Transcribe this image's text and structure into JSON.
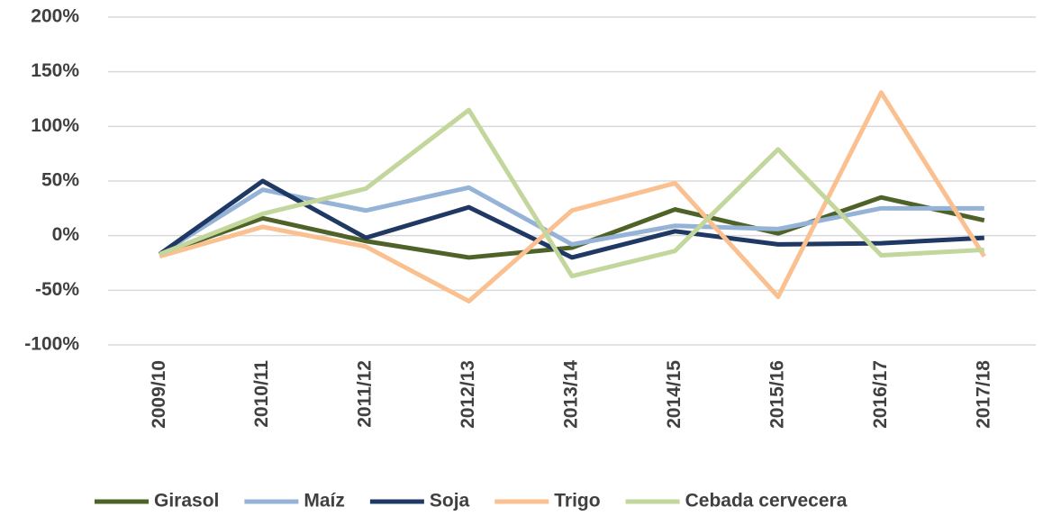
{
  "chart_data": {
    "type": "line",
    "categories": [
      "2009/10",
      "2010/11",
      "2011/12",
      "2012/13",
      "2013/14",
      "2014/15",
      "2015/16",
      "2016/17",
      "2017/18"
    ],
    "series": [
      {
        "name": "Girasol",
        "color": "#4f6228",
        "values": [
          -17,
          16,
          -5,
          -20,
          -11,
          24,
          2,
          35,
          14
        ]
      },
      {
        "name": "Maíz",
        "color": "#95b3d7",
        "values": [
          -17,
          42,
          23,
          44,
          -8,
          9,
          6,
          25,
          25
        ]
      },
      {
        "name": "Soja",
        "color": "#1f3864",
        "values": [
          -17,
          50,
          -2,
          26,
          -20,
          4,
          -8,
          -7,
          -2
        ]
      },
      {
        "name": "Trigo",
        "color": "#fac090",
        "values": [
          -19,
          8,
          -10,
          -60,
          23,
          48,
          -56,
          131,
          -19
        ]
      },
      {
        "name": "Cebada cervecera",
        "color": "#c3d69b",
        "values": [
          -17,
          20,
          43,
          115,
          -37,
          -14,
          79,
          -18,
          -13
        ]
      }
    ],
    "ylim": [
      -100,
      200
    ],
    "yticks": [
      {
        "value": -100,
        "label": "-100%"
      },
      {
        "value": -50,
        "label": "-50%"
      },
      {
        "value": 0,
        "label": "0%"
      },
      {
        "value": 50,
        "label": "50%"
      },
      {
        "value": 100,
        "label": "100%"
      },
      {
        "value": 150,
        "label": "150%"
      },
      {
        "value": 200,
        "label": "200%"
      }
    ],
    "grid": true,
    "legend": "bottom"
  }
}
